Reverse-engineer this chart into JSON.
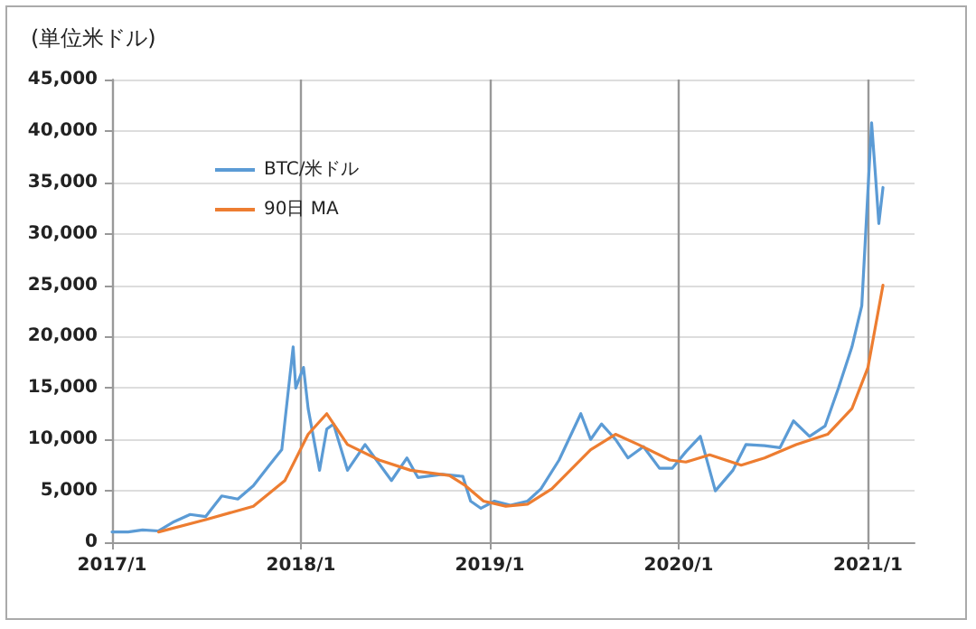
{
  "chart_data": {
    "type": "line",
    "ylabel": "(単位米ドル)",
    "xlim": [
      "2017-01-01",
      "2021-04-01"
    ],
    "xticks": [
      {
        "value": "2017-01-01",
        "label": "2017/1"
      },
      {
        "value": "2018-01-01",
        "label": "2018/1"
      },
      {
        "value": "2019-01-01",
        "label": "2019/1"
      },
      {
        "value": "2020-01-01",
        "label": "2020/1"
      },
      {
        "value": "2021-01-01",
        "label": "2021/1"
      }
    ],
    "ylim": [
      0,
      45000
    ],
    "yticks": [
      0,
      {
        "value": 5000,
        "label": "5,000"
      },
      {
        "value": 10000,
        "label": "10,000"
      },
      {
        "value": 15000,
        "label": "15,000"
      },
      {
        "value": 20000,
        "label": "20,000"
      },
      {
        "value": 25000,
        "label": "25,000"
      },
      {
        "value": 30000,
        "label": "30,000"
      },
      {
        "value": 35000,
        "label": "35,000"
      },
      {
        "value": 40000,
        "label": "40,000"
      },
      {
        "value": 45000,
        "label": "45,000"
      }
    ],
    "grid": true,
    "legend": "top left",
    "marker": "none",
    "line_style": "solid",
    "series": [
      {
        "name": "BTC/米ドル",
        "color": "#5b9bd5",
        "x": [
          "2017-01-01",
          "2017-02-01",
          "2017-03-01",
          "2017-04-01",
          "2017-05-01",
          "2017-06-01",
          "2017-07-01",
          "2017-08-01",
          "2017-09-01",
          "2017-10-01",
          "2017-11-01",
          "2017-11-25",
          "2017-12-17",
          "2017-12-22",
          "2018-01-06",
          "2018-01-15",
          "2018-02-06",
          "2018-02-20",
          "2018-03-05",
          "2018-04-01",
          "2018-05-05",
          "2018-06-25",
          "2018-07-25",
          "2018-08-15",
          "2018-10-01",
          "2018-11-10",
          "2018-11-25",
          "2018-12-15",
          "2019-01-10",
          "2019-02-10",
          "2019-03-15",
          "2019-04-10",
          "2019-05-15",
          "2019-06-26",
          "2019-07-15",
          "2019-08-05",
          "2019-09-01",
          "2019-09-25",
          "2019-10-25",
          "2019-11-25",
          "2019-12-20",
          "2020-01-15",
          "2020-02-12",
          "2020-03-12",
          "2020-04-15",
          "2020-05-10",
          "2020-06-15",
          "2020-07-15",
          "2020-08-10",
          "2020-09-10",
          "2020-10-10",
          "2020-11-05",
          "2020-12-01",
          "2020-12-20",
          "2021-01-08",
          "2021-01-15",
          "2021-01-22",
          "2021-01-30"
        ],
        "values": [
          1000,
          1000,
          1200,
          1100,
          2000,
          2700,
          2500,
          4500,
          4200,
          5500,
          7500,
          9000,
          19000,
          15000,
          17000,
          13000,
          7000,
          11000,
          11500,
          7000,
          9500,
          6000,
          8200,
          6300,
          6600,
          6400,
          4000,
          3300,
          4000,
          3600,
          4000,
          5200,
          8000,
          12500,
          10000,
          11500,
          10000,
          8200,
          9300,
          7200,
          7200,
          8800,
          10300,
          5000,
          7000,
          9500,
          9400,
          9200,
          11800,
          10300,
          11300,
          15000,
          19000,
          23000,
          40800,
          36000,
          31000,
          34500
        ]
      },
      {
        "name": "90日 MA",
        "color": "#ed7d31",
        "x": [
          "2017-04-01",
          "2017-07-01",
          "2017-10-01",
          "2017-12-01",
          "2018-01-15",
          "2018-02-20",
          "2018-04-01",
          "2018-06-01",
          "2018-08-01",
          "2018-10-15",
          "2018-11-15",
          "2018-12-20",
          "2019-02-01",
          "2019-03-15",
          "2019-05-01",
          "2019-07-15",
          "2019-09-01",
          "2019-10-15",
          "2019-12-15",
          "2020-01-15",
          "2020-03-01",
          "2020-05-01",
          "2020-06-15",
          "2020-08-15",
          "2020-10-15",
          "2020-12-01",
          "2021-01-01",
          "2021-01-30"
        ],
        "values": [
          1000,
          2200,
          3500,
          6000,
          10500,
          12500,
          9500,
          8000,
          7000,
          6500,
          5500,
          4000,
          3500,
          3700,
          5200,
          9000,
          10500,
          9500,
          8000,
          7800,
          8500,
          7500,
          8200,
          9500,
          10500,
          13000,
          17000,
          25000
        ]
      }
    ]
  }
}
